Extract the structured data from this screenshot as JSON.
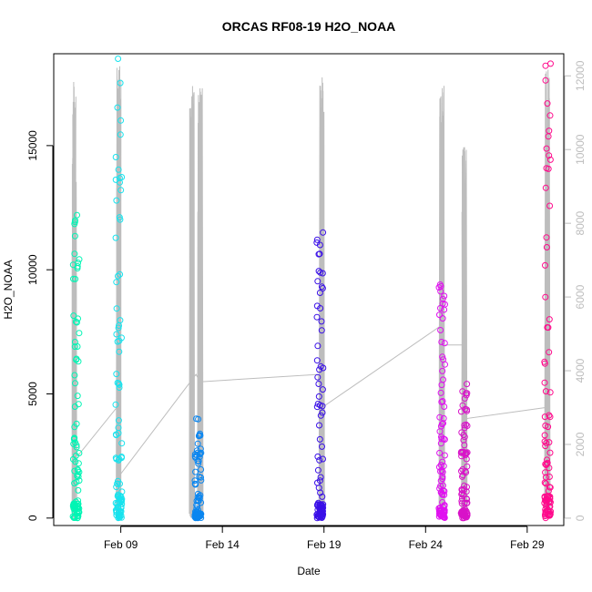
{
  "chart_data": {
    "type": "scatter",
    "title": "ORCAS RF08-19 H2O_NOAA",
    "xlabel": "Date",
    "ylabel": "H2O_NOAA",
    "x_tick_labels": [
      "Feb 09",
      "Feb 14",
      "Feb 19",
      "Feb 24",
      "Feb 29"
    ],
    "x_tick_days": [
      9,
      14,
      19,
      24,
      29
    ],
    "xlim_days": [
      5.7,
      30.8
    ],
    "ylim": [
      -300,
      18700
    ],
    "y_ticks": [
      0,
      5000,
      10000,
      15000
    ],
    "y_tick_labels": [
      "0",
      "5000",
      "10000",
      "15000"
    ],
    "y2_label": "",
    "y2lim": [
      -200,
      12600
    ],
    "y2_ticks": [
      0,
      2000,
      4000,
      6000,
      8000,
      10000,
      12000
    ],
    "y2_tick_labels": [
      "0",
      "2000",
      "4000",
      "6000",
      "8000",
      "10000",
      "12000"
    ],
    "grid": false,
    "legend": "none",
    "colors": {
      "axis": "#000000",
      "secondary_series": "#bdbdbd",
      "secondary_axis": "#bdbdbd"
    },
    "series": [
      {
        "day": 6.8,
        "color": "#00f5b4",
        "ymax": 12200
      },
      {
        "day": 8.9,
        "color": "#17e3ee",
        "ymax": 18500
      },
      {
        "day": 12.8,
        "color": "#0a86f0",
        "ymax": 4000
      },
      {
        "day": 18.8,
        "color": "#3a10e8",
        "ymax": 11500
      },
      {
        "day": 24.8,
        "color": "#e010f0",
        "ymax": 9400
      },
      {
        "day": 25.9,
        "color": "#d813c8",
        "ymax": 5400
      },
      {
        "day": 30.0,
        "color": "#ff0a8c",
        "ymax": 18300
      }
    ],
    "secondary_series": {
      "spikes": [
        {
          "day": 6.7,
          "ymax": 11900
        },
        {
          "day": 8.9,
          "ymax": 12300
        },
        {
          "day": 12.5,
          "ymax": 11800
        },
        {
          "day": 12.9,
          "ymax": 11700
        },
        {
          "day": 18.9,
          "ymax": 12100
        },
        {
          "day": 24.8,
          "ymax": 11900
        },
        {
          "day": 25.9,
          "ymax": 10200
        },
        {
          "day": 30.0,
          "ymax": 12300
        }
      ],
      "connector_x": [
        6.9,
        8.8,
        9.0,
        12.7,
        12.9,
        18.7,
        18.9,
        24.7,
        24.9,
        25.8,
        26.0,
        29.9
      ],
      "connector_y": [
        1700,
        3000,
        1200,
        3900,
        3700,
        3900,
        3000,
        5200,
        4700,
        4700,
        2700,
        3000
      ]
    }
  }
}
